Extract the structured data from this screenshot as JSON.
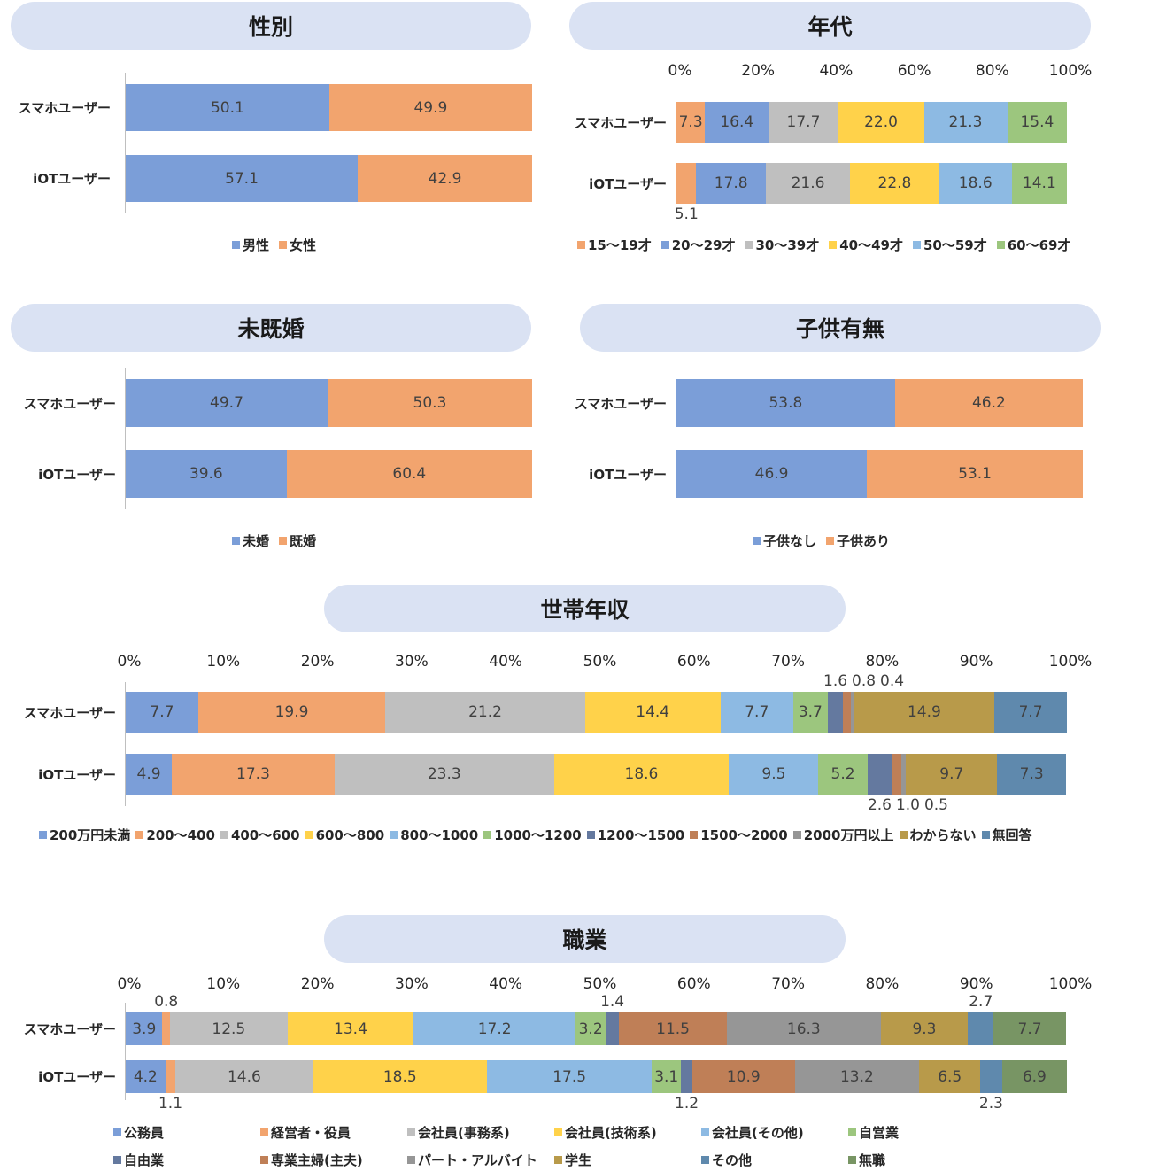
{
  "colors": {
    "blue": "#7b9ed8",
    "orange": "#f2a46e",
    "gray": "#bfbfbf",
    "yellow": "#ffd24a",
    "lightblue": "#8dbae3",
    "green": "#9cc67e",
    "darkblue": "#64799f",
    "brown": "#bf7f57",
    "darkgray": "#969696",
    "gold": "#b89a4a",
    "steel": "#5f89ad",
    "darkgreen": "#789564"
  },
  "chart_data": [
    {
      "id": "gender",
      "type": "bar",
      "stacked": true,
      "orientation": "horizontal",
      "title": "性別",
      "categories": [
        "スマホユーザー",
        "iOTユーザー"
      ],
      "series": [
        {
          "name": "男性",
          "color": "#7b9ed8",
          "values": [
            50.1,
            57.1
          ]
        },
        {
          "name": "女性",
          "color": "#f2a46e",
          "values": [
            49.9,
            42.9
          ]
        }
      ],
      "xlim": [
        0,
        100
      ],
      "ticks": [],
      "legend": "bottom"
    },
    {
      "id": "age",
      "type": "bar",
      "stacked": true,
      "orientation": "horizontal",
      "title": "年代",
      "categories": [
        "スマホユーザー",
        "iOTユーザー"
      ],
      "series": [
        {
          "name": "15〜19才",
          "color": "#f2a46e",
          "values": [
            7.3,
            5.1
          ]
        },
        {
          "name": "20〜29才",
          "color": "#7b9ed8",
          "values": [
            16.4,
            17.8
          ]
        },
        {
          "name": "30〜39才",
          "color": "#bfbfbf",
          "values": [
            17.7,
            21.6
          ]
        },
        {
          "name": "40〜49才",
          "color": "#ffd24a",
          "values": [
            22.0,
            22.8
          ]
        },
        {
          "name": "50〜59才",
          "color": "#8dbae3",
          "values": [
            21.3,
            18.6
          ]
        },
        {
          "name": "60〜69才",
          "color": "#9cc67e",
          "values": [
            15.4,
            14.1
          ]
        }
      ],
      "xlim": [
        0,
        100
      ],
      "ticks": [
        "0%",
        "20%",
        "40%",
        "60%",
        "80%",
        "100%"
      ],
      "legend": "bottom"
    },
    {
      "id": "marriage",
      "type": "bar",
      "stacked": true,
      "orientation": "horizontal",
      "title": "未既婚",
      "categories": [
        "スマホユーザー",
        "iOTユーザー"
      ],
      "series": [
        {
          "name": "未婚",
          "color": "#7b9ed8",
          "values": [
            49.7,
            39.6
          ]
        },
        {
          "name": "既婚",
          "color": "#f2a46e",
          "values": [
            50.3,
            60.4
          ]
        }
      ],
      "xlim": [
        0,
        100
      ],
      "ticks": [],
      "legend": "bottom"
    },
    {
      "id": "children",
      "type": "bar",
      "stacked": true,
      "orientation": "horizontal",
      "title": "子供有無",
      "categories": [
        "スマホユーザー",
        "iOTユーザー"
      ],
      "series": [
        {
          "name": "子供なし",
          "color": "#7b9ed8",
          "values": [
            53.8,
            46.9
          ]
        },
        {
          "name": "子供あり",
          "color": "#f2a46e",
          "values": [
            46.2,
            53.1
          ]
        }
      ],
      "xlim": [
        0,
        100
      ],
      "ticks": [],
      "legend": "bottom"
    },
    {
      "id": "income",
      "type": "bar",
      "stacked": true,
      "orientation": "horizontal",
      "title": "世帯年収",
      "categories": [
        "スマホユーザー",
        "iOTユーザー"
      ],
      "series": [
        {
          "name": "200万円未満",
          "color": "#7b9ed8",
          "values": [
            7.7,
            4.9
          ]
        },
        {
          "name": "200〜400",
          "color": "#f2a46e",
          "values": [
            19.9,
            17.3
          ]
        },
        {
          "name": "400〜600",
          "color": "#bfbfbf",
          "values": [
            21.2,
            23.3
          ]
        },
        {
          "name": "600〜800",
          "color": "#ffd24a",
          "values": [
            14.4,
            18.6
          ]
        },
        {
          "name": "800〜1000",
          "color": "#8dbae3",
          "values": [
            7.7,
            9.5
          ]
        },
        {
          "name": "1000〜1200",
          "color": "#9cc67e",
          "values": [
            3.7,
            5.2
          ]
        },
        {
          "name": "1200〜1500",
          "color": "#64799f",
          "values": [
            1.6,
            2.6
          ]
        },
        {
          "name": "1500〜2000",
          "color": "#bf7f57",
          "values": [
            0.8,
            1.0
          ]
        },
        {
          "name": "2000万円以上",
          "color": "#969696",
          "values": [
            0.4,
            0.5
          ]
        },
        {
          "name": "わからない",
          "color": "#b89a4a",
          "values": [
            14.9,
            9.7
          ]
        },
        {
          "name": "無回答",
          "color": "#5f89ad",
          "values": [
            7.7,
            7.3
          ]
        }
      ],
      "xlim": [
        0,
        100
      ],
      "ticks": [
        "0%",
        "10%",
        "20%",
        "30%",
        "40%",
        "50%",
        "60%",
        "70%",
        "80%",
        "90%",
        "100%"
      ],
      "legend": "bottom"
    },
    {
      "id": "occupation",
      "type": "bar",
      "stacked": true,
      "orientation": "horizontal",
      "title": "職業",
      "categories": [
        "スマホユーザー",
        "iOTユーザー"
      ],
      "series": [
        {
          "name": "公務員",
          "color": "#7b9ed8",
          "values": [
            3.9,
            4.2
          ]
        },
        {
          "name": "経営者・役員",
          "color": "#f2a46e",
          "values": [
            0.8,
            1.1
          ]
        },
        {
          "name": "会社員(事務系)",
          "color": "#bfbfbf",
          "values": [
            12.5,
            14.6
          ]
        },
        {
          "name": "会社員(技術系)",
          "color": "#ffd24a",
          "values": [
            13.4,
            18.5
          ]
        },
        {
          "name": "会社員(その他)",
          "color": "#8dbae3",
          "values": [
            17.2,
            17.5
          ]
        },
        {
          "name": "自営業",
          "color": "#9cc67e",
          "values": [
            3.2,
            3.1
          ]
        },
        {
          "name": "自由業",
          "color": "#64799f",
          "values": [
            1.4,
            1.2
          ]
        },
        {
          "name": "専業主婦(主夫)",
          "color": "#bf7f57",
          "values": [
            11.5,
            10.9
          ]
        },
        {
          "name": "パート・アルバイト",
          "color": "#969696",
          "values": [
            16.3,
            13.2
          ]
        },
        {
          "name": "学生",
          "color": "#b89a4a",
          "values": [
            9.3,
            6.5
          ]
        },
        {
          "name": "その他",
          "color": "#5f89ad",
          "values": [
            2.7,
            2.3
          ]
        },
        {
          "name": "無職",
          "color": "#789564",
          "values": [
            7.7,
            6.9
          ]
        }
      ],
      "xlim": [
        0,
        100
      ],
      "ticks": [
        "0%",
        "10%",
        "20%",
        "30%",
        "40%",
        "50%",
        "60%",
        "70%",
        "80%",
        "90%",
        "100%"
      ],
      "legend": "bottom-grid"
    }
  ]
}
